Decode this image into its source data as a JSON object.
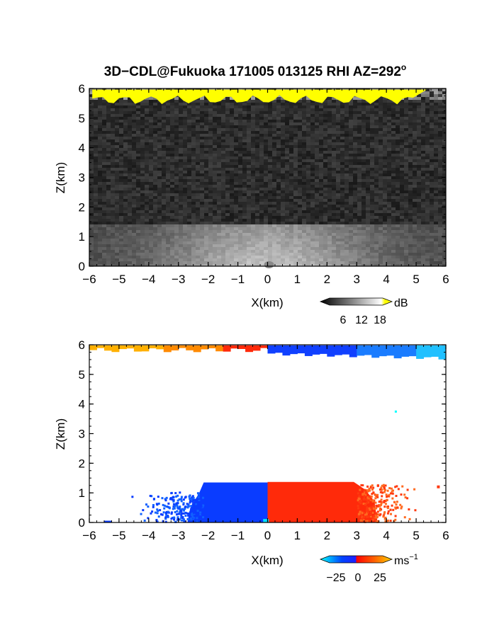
{
  "chart_data": [
    {
      "type": "heatmap",
      "title_main": "3D−CDL@Fukuoka 171005 013125 RHI AZ=292",
      "title_sup": "o",
      "xlabel": "X(km)",
      "ylabel": "Z(km)",
      "xlim": [
        -6,
        6
      ],
      "ylim": [
        0,
        6
      ],
      "xticks": [
        "−6",
        "−5",
        "−4",
        "−3",
        "−2",
        "−1",
        "0",
        "1",
        "2",
        "3",
        "4",
        "5",
        "6"
      ],
      "yticks": [
        "0",
        "1",
        "2",
        "3",
        "4",
        "5",
        "6"
      ],
      "colorbar": {
        "unit": "dB",
        "ticks": [
          "6",
          "12",
          "18"
        ],
        "range": [
          0,
          20
        ],
        "colors": [
          "#000000",
          "#ffffff",
          "#ffff00"
        ]
      },
      "regions": [
        {
          "feature": "bright aerosol layer",
          "x": [
            -6,
            6
          ],
          "z": [
            0,
            1.4
          ],
          "peak_db": 16,
          "peak_at_x": 0
        },
        {
          "feature": "saturated cloud top",
          "x": [
            -6,
            6
          ],
          "z": [
            5.55,
            6.0
          ],
          "value_db": 20
        },
        {
          "feature": "background noise",
          "x": [
            -6,
            6
          ],
          "z": [
            1.4,
            5.6
          ],
          "value_db": 3
        }
      ]
    },
    {
      "type": "heatmap",
      "xlabel": "X(km)",
      "ylabel": "Z(km)",
      "xlim": [
        -6,
        6
      ],
      "ylim": [
        0,
        6
      ],
      "xticks": [
        "−6",
        "−5",
        "−4",
        "−3",
        "−2",
        "−1",
        "0",
        "1",
        "2",
        "3",
        "4",
        "5",
        "6"
      ],
      "yticks": [
        "0",
        "1",
        "2",
        "3",
        "4",
        "5",
        "6"
      ],
      "colorbar": {
        "unit": "ms",
        "unit_sup": "−1",
        "ticks": [
          "−25",
          "0",
          "25"
        ],
        "range": [
          -30,
          30
        ],
        "colors": [
          "#00ffff",
          "#0044ff",
          "#ff0000",
          "#ffd000"
        ]
      },
      "regions": [
        {
          "feature": "approaching flow",
          "x": [
            -4.5,
            0
          ],
          "z": [
            0,
            1.35
          ],
          "velocity_ms": -18
        },
        {
          "feature": "receding flow",
          "x": [
            0,
            4.3
          ],
          "z": [
            0,
            1.35
          ],
          "velocity_ms": 18
        },
        {
          "feature": "cloud top receding",
          "x": [
            -6,
            0
          ],
          "z": [
            5.8,
            6.0
          ],
          "velocity_ms": 20
        },
        {
          "feature": "cloud top approaching",
          "x": [
            0,
            6
          ],
          "z": [
            5.6,
            6.0
          ],
          "velocity_ms": -15
        }
      ]
    }
  ]
}
